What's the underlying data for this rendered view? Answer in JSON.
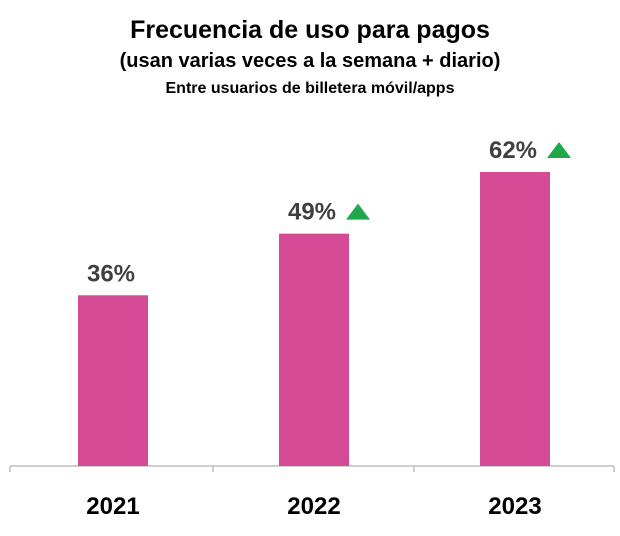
{
  "chart_data": {
    "type": "bar",
    "title": "Frecuencia de uso para pagos",
    "subtitle": "(usan varias veces a la semana + diario)",
    "note": "Entre usuarios de billetera móvil/apps",
    "categories": [
      "2021",
      "2022",
      "2023"
    ],
    "values": [
      36,
      49,
      62
    ],
    "value_labels": [
      "36%",
      "49%",
      "62%"
    ],
    "increase_markers": [
      false,
      true,
      true
    ],
    "ylim": [
      0,
      70
    ],
    "xlabel": "",
    "ylabel": "",
    "grid": false,
    "colors": {
      "bar": "#D54A95",
      "label": "#404040",
      "arrow": "#1EA84B",
      "axis": "#BFBFBF"
    }
  }
}
